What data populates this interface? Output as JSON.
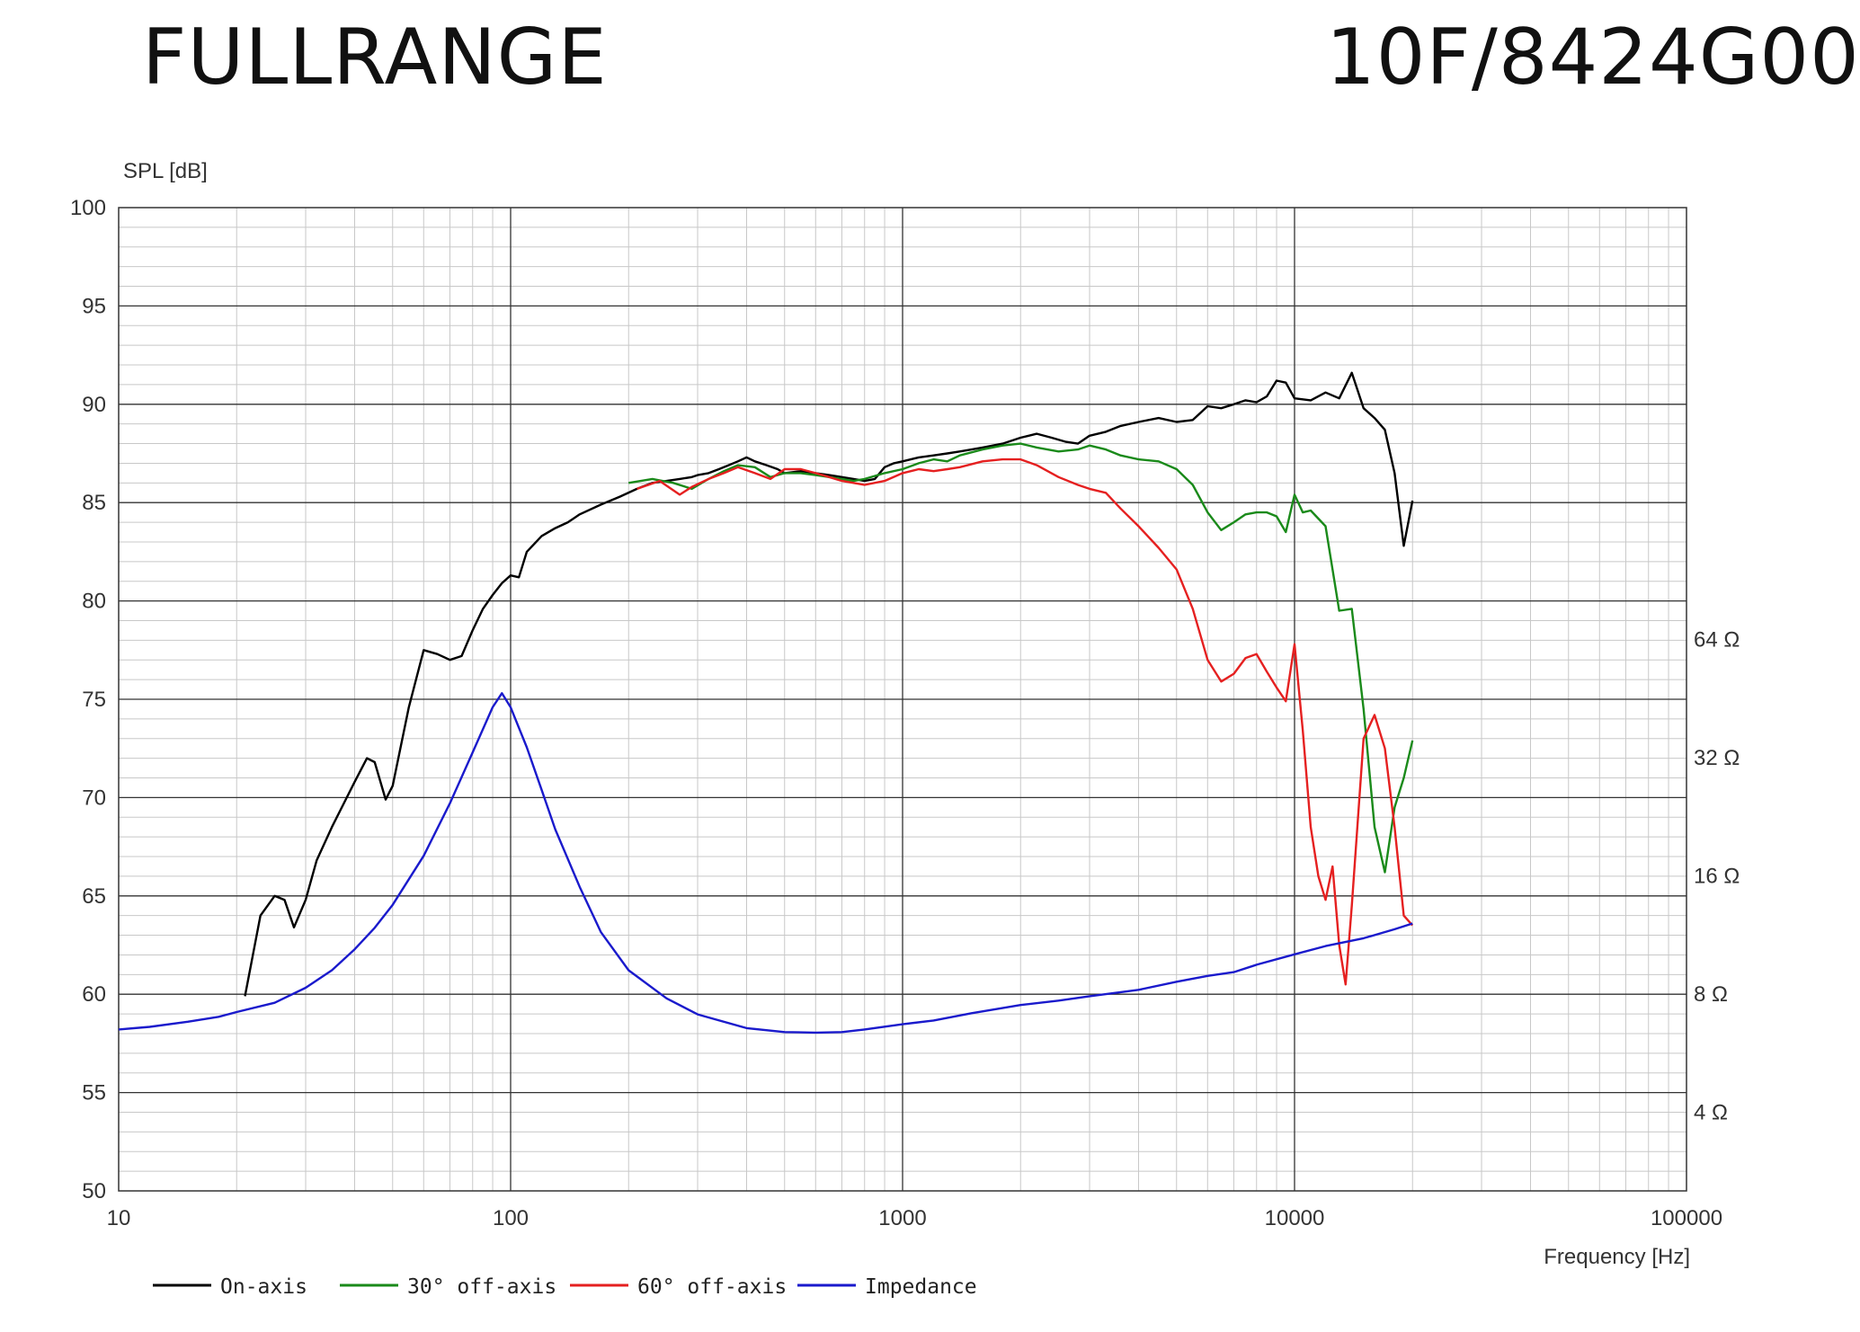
{
  "header": {
    "left_title": "FULLRANGE",
    "right_title": "10F/8424G00"
  },
  "chart_data": {
    "type": "line",
    "ylabel": "SPL [dB]",
    "xlabel": "Frequency [Hz]",
    "x_scale": "log",
    "xlim": [
      10,
      100000
    ],
    "ylim": [
      50,
      100
    ],
    "x_ticks": [
      "10",
      "100",
      "1000",
      "10000",
      "100000"
    ],
    "y_ticks": [
      "50",
      "55",
      "60",
      "65",
      "70",
      "75",
      "80",
      "85",
      "90",
      "95",
      "100"
    ],
    "secondary_axis": {
      "label_ticks": [
        {
          "text": "4 Ω",
          "ohms": 4
        },
        {
          "text": "8 Ω",
          "ohms": 8
        },
        {
          "text": "16 Ω",
          "ohms": 16
        },
        {
          "text": "32 Ω",
          "ohms": 32
        },
        {
          "text": "64 Ω",
          "ohms": 64
        }
      ]
    },
    "grid": true,
    "legend_position": "bottom-left",
    "series": [
      {
        "name": "On-axis",
        "color": "#000000",
        "points": [
          [
            21,
            59.9
          ],
          [
            23,
            64
          ],
          [
            25,
            65
          ],
          [
            26.5,
            64.8
          ],
          [
            28,
            63.4
          ],
          [
            30,
            64.8
          ],
          [
            32,
            66.8
          ],
          [
            35,
            68.5
          ],
          [
            40,
            70.8
          ],
          [
            43,
            72
          ],
          [
            45,
            71.8
          ],
          [
            48,
            69.9
          ],
          [
            50,
            70.6
          ],
          [
            55,
            74.6
          ],
          [
            60,
            77.5
          ],
          [
            65,
            77.3
          ],
          [
            70,
            77
          ],
          [
            75,
            77.2
          ],
          [
            80,
            78.5
          ],
          [
            85,
            79.6
          ],
          [
            90,
            80.3
          ],
          [
            95,
            80.9
          ],
          [
            100,
            81.3
          ],
          [
            105,
            81.2
          ],
          [
            110,
            82.5
          ],
          [
            120,
            83.3
          ],
          [
            130,
            83.7
          ],
          [
            140,
            84
          ],
          [
            150,
            84.4
          ],
          [
            170,
            84.9
          ],
          [
            190,
            85.3
          ],
          [
            210,
            85.7
          ],
          [
            230,
            86
          ],
          [
            250,
            86.1
          ],
          [
            270,
            86.2
          ],
          [
            290,
            86.3
          ],
          [
            300,
            86.4
          ],
          [
            320,
            86.5
          ],
          [
            340,
            86.7
          ],
          [
            360,
            86.9
          ],
          [
            380,
            87.1
          ],
          [
            400,
            87.3
          ],
          [
            420,
            87.1
          ],
          [
            450,
            86.9
          ],
          [
            480,
            86.7
          ],
          [
            500,
            86.5
          ],
          [
            550,
            86.6
          ],
          [
            600,
            86.5
          ],
          [
            650,
            86.4
          ],
          [
            700,
            86.3
          ],
          [
            750,
            86.2
          ],
          [
            800,
            86.1
          ],
          [
            850,
            86.2
          ],
          [
            900,
            86.8
          ],
          [
            950,
            87
          ],
          [
            1000,
            87.1
          ],
          [
            1100,
            87.3
          ],
          [
            1200,
            87.4
          ],
          [
            1300,
            87.5
          ],
          [
            1400,
            87.6
          ],
          [
            1500,
            87.7
          ],
          [
            1600,
            87.8
          ],
          [
            1700,
            87.9
          ],
          [
            1800,
            88
          ],
          [
            2000,
            88.3
          ],
          [
            2200,
            88.5
          ],
          [
            2400,
            88.3
          ],
          [
            2600,
            88.1
          ],
          [
            2800,
            88
          ],
          [
            3000,
            88.4
          ],
          [
            3300,
            88.6
          ],
          [
            3600,
            88.9
          ],
          [
            4000,
            89.1
          ],
          [
            4500,
            89.3
          ],
          [
            5000,
            89.1
          ],
          [
            5500,
            89.2
          ],
          [
            6000,
            89.9
          ],
          [
            6500,
            89.8
          ],
          [
            7000,
            90
          ],
          [
            7500,
            90.2
          ],
          [
            8000,
            90.1
          ],
          [
            8500,
            90.4
          ],
          [
            9000,
            91.2
          ],
          [
            9500,
            91.1
          ],
          [
            10000,
            90.3
          ],
          [
            11000,
            90.2
          ],
          [
            12000,
            90.6
          ],
          [
            13000,
            90.3
          ],
          [
            14000,
            91.6
          ],
          [
            15000,
            89.8
          ],
          [
            16000,
            89.3
          ],
          [
            17000,
            88.7
          ],
          [
            18000,
            86.5
          ],
          [
            19000,
            82.8
          ],
          [
            20000,
            85.1
          ]
        ]
      },
      {
        "name": "30° off-axis",
        "color": "#1a8a1a",
        "points": [
          [
            200,
            86
          ],
          [
            230,
            86.2
          ],
          [
            260,
            86
          ],
          [
            290,
            85.7
          ],
          [
            320,
            86.2
          ],
          [
            350,
            86.6
          ],
          [
            380,
            86.9
          ],
          [
            420,
            86.8
          ],
          [
            460,
            86.3
          ],
          [
            500,
            86.5
          ],
          [
            550,
            86.5
          ],
          [
            600,
            86.4
          ],
          [
            650,
            86.3
          ],
          [
            700,
            86.2
          ],
          [
            750,
            86.1
          ],
          [
            800,
            86.2
          ],
          [
            900,
            86.5
          ],
          [
            1000,
            86.7
          ],
          [
            1100,
            87
          ],
          [
            1200,
            87.2
          ],
          [
            1300,
            87.1
          ],
          [
            1400,
            87.4
          ],
          [
            1600,
            87.7
          ],
          [
            1800,
            87.9
          ],
          [
            2000,
            88
          ],
          [
            2200,
            87.8
          ],
          [
            2500,
            87.6
          ],
          [
            2800,
            87.7
          ],
          [
            3000,
            87.9
          ],
          [
            3300,
            87.7
          ],
          [
            3600,
            87.4
          ],
          [
            4000,
            87.2
          ],
          [
            4500,
            87.1
          ],
          [
            5000,
            86.7
          ],
          [
            5500,
            85.9
          ],
          [
            6000,
            84.5
          ],
          [
            6500,
            83.6
          ],
          [
            7000,
            84
          ],
          [
            7500,
            84.4
          ],
          [
            8000,
            84.5
          ],
          [
            8500,
            84.5
          ],
          [
            9000,
            84.3
          ],
          [
            9500,
            83.5
          ],
          [
            10000,
            85.4
          ],
          [
            10500,
            84.5
          ],
          [
            11000,
            84.6
          ],
          [
            12000,
            83.8
          ],
          [
            13000,
            79.5
          ],
          [
            14000,
            79.6
          ],
          [
            15000,
            74.5
          ],
          [
            16000,
            68.5
          ],
          [
            17000,
            66.2
          ],
          [
            18000,
            69.5
          ],
          [
            19000,
            71
          ],
          [
            20000,
            72.9
          ]
        ]
      },
      {
        "name": "60° off-axis",
        "color": "#e52020",
        "points": [
          [
            210,
            85.7
          ],
          [
            240,
            86.1
          ],
          [
            270,
            85.4
          ],
          [
            290,
            85.8
          ],
          [
            320,
            86.2
          ],
          [
            350,
            86.5
          ],
          [
            380,
            86.8
          ],
          [
            420,
            86.5
          ],
          [
            460,
            86.2
          ],
          [
            500,
            86.7
          ],
          [
            550,
            86.7
          ],
          [
            600,
            86.5
          ],
          [
            650,
            86.3
          ],
          [
            700,
            86.1
          ],
          [
            750,
            86
          ],
          [
            800,
            85.9
          ],
          [
            900,
            86.1
          ],
          [
            1000,
            86.5
          ],
          [
            1100,
            86.7
          ],
          [
            1200,
            86.6
          ],
          [
            1300,
            86.7
          ],
          [
            1400,
            86.8
          ],
          [
            1600,
            87.1
          ],
          [
            1800,
            87.2
          ],
          [
            2000,
            87.2
          ],
          [
            2200,
            86.9
          ],
          [
            2500,
            86.3
          ],
          [
            2800,
            85.9
          ],
          [
            3000,
            85.7
          ],
          [
            3300,
            85.5
          ],
          [
            3600,
            84.7
          ],
          [
            4000,
            83.8
          ],
          [
            4500,
            82.7
          ],
          [
            5000,
            81.6
          ],
          [
            5500,
            79.6
          ],
          [
            6000,
            77
          ],
          [
            6500,
            75.9
          ],
          [
            7000,
            76.3
          ],
          [
            7500,
            77.1
          ],
          [
            8000,
            77.3
          ],
          [
            8500,
            76.4
          ],
          [
            9000,
            75.6
          ],
          [
            9500,
            74.9
          ],
          [
            10000,
            77.8
          ],
          [
            10500,
            73.4
          ],
          [
            11000,
            68.5
          ],
          [
            11500,
            66
          ],
          [
            12000,
            64.8
          ],
          [
            12500,
            66.5
          ],
          [
            13000,
            62.5
          ],
          [
            13500,
            60.5
          ],
          [
            14000,
            64.5
          ],
          [
            15000,
            73
          ],
          [
            16000,
            74.2
          ],
          [
            17000,
            72.5
          ],
          [
            18000,
            68.5
          ],
          [
            19000,
            64
          ],
          [
            20000,
            63.5
          ]
        ]
      },
      {
        "name": "Impedance",
        "color": "#1a1acc",
        "unit": "ohm",
        "points": [
          [
            10,
            6.5
          ],
          [
            12,
            6.6
          ],
          [
            15,
            6.8
          ],
          [
            18,
            7
          ],
          [
            20,
            7.2
          ],
          [
            25,
            7.6
          ],
          [
            30,
            8.3
          ],
          [
            35,
            9.2
          ],
          [
            40,
            10.4
          ],
          [
            45,
            11.8
          ],
          [
            50,
            13.5
          ],
          [
            60,
            18
          ],
          [
            70,
            24.5
          ],
          [
            80,
            33
          ],
          [
            90,
            43
          ],
          [
            95,
            46.7
          ],
          [
            100,
            43
          ],
          [
            110,
            34
          ],
          [
            120,
            26.5
          ],
          [
            130,
            21
          ],
          [
            150,
            15
          ],
          [
            170,
            11.5
          ],
          [
            200,
            9.2
          ],
          [
            250,
            7.8
          ],
          [
            300,
            7.1
          ],
          [
            400,
            6.55
          ],
          [
            500,
            6.4
          ],
          [
            600,
            6.38
          ],
          [
            700,
            6.4
          ],
          [
            800,
            6.5
          ],
          [
            1000,
            6.7
          ],
          [
            1200,
            6.85
          ],
          [
            1500,
            7.15
          ],
          [
            2000,
            7.5
          ],
          [
            2500,
            7.7
          ],
          [
            3000,
            7.9
          ],
          [
            4000,
            8.2
          ],
          [
            5000,
            8.6
          ],
          [
            6000,
            8.9
          ],
          [
            7000,
            9.1
          ],
          [
            8000,
            9.5
          ],
          [
            10000,
            10.1
          ],
          [
            12000,
            10.6
          ],
          [
            15000,
            11.1
          ],
          [
            18000,
            11.7
          ],
          [
            20000,
            12.1
          ]
        ]
      }
    ]
  }
}
